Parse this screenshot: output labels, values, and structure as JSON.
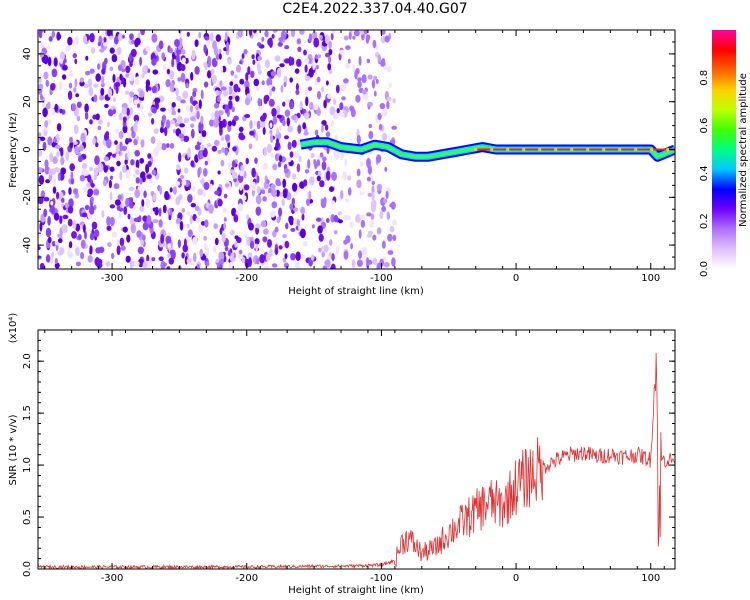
{
  "title": "C2E4.2022.337.04.40.G07",
  "colors": {
    "background": "#ffffff",
    "axis": "#000000",
    "noise": "#7a1cf0",
    "snr_line": "#e03030",
    "colorbar": [
      "#ffffff",
      "#e0c0ff",
      "#b070ff",
      "#7000ff",
      "#0000ff",
      "#00c8ff",
      "#00ff80",
      "#40ff00",
      "#c0ff00",
      "#ffd000",
      "#ff6000",
      "#ff0000",
      "#ff00a0"
    ]
  },
  "chart_data": [
    {
      "type": "heatmap",
      "xlabel": "Height of straight line (km)",
      "ylabel": "Frequency (Hz)",
      "xlim": [
        -355,
        118
      ],
      "ylim": [
        -50,
        50
      ],
      "xticks": [
        -300,
        -200,
        -100,
        0,
        100
      ],
      "yticks": [
        -40,
        -20,
        0,
        20,
        40
      ],
      "noise_region_x": [
        -355,
        -90
      ],
      "signal_track": {
        "x": [
          -160,
          -150,
          -140,
          -130,
          -115,
          -105,
          -95,
          -85,
          -75,
          -65,
          -55,
          -45,
          -35,
          -25,
          -15,
          0,
          20,
          40,
          60,
          80,
          100,
          105,
          118
        ],
        "y": [
          2,
          3,
          3,
          1,
          0,
          2,
          1,
          -2,
          -3,
          -3,
          -2,
          -1,
          0,
          1,
          0,
          0,
          0,
          0,
          0,
          0,
          0,
          -3,
          0
        ]
      },
      "colorbar": {
        "label": "Normalized spectral amplitude",
        "ticks": [
          "0.0",
          "0.2",
          "0.4",
          "0.6",
          "0.8"
        ],
        "range": [
          0,
          1
        ]
      }
    },
    {
      "type": "line",
      "xlabel": "Height of straight line (km)",
      "ylabel": "SNR (10 * v/v)",
      "multiplier_label": "(x10⁴)",
      "xlim": [
        -355,
        118
      ],
      "ylim": [
        0,
        2.3
      ],
      "xticks": [
        -300,
        -200,
        -100,
        0,
        100
      ],
      "yticks": [
        "0.0",
        "0.5",
        "1.0",
        "1.5",
        "2.0"
      ],
      "series": [
        {
          "x": [
            -355,
            -300,
            -200,
            -120,
            -100,
            -90,
            -85,
            -80,
            -70,
            -60,
            -50,
            -40,
            -30,
            -20,
            -10,
            0,
            10,
            20,
            30,
            40,
            50,
            60,
            70,
            80,
            90,
            100,
            104,
            106,
            108,
            118
          ],
          "y": [
            0.02,
            0.02,
            0.02,
            0.03,
            0.04,
            0.08,
            0.25,
            0.3,
            0.15,
            0.2,
            0.35,
            0.45,
            0.55,
            0.65,
            0.6,
            0.8,
            0.9,
            0.98,
            1.05,
            1.1,
            1.12,
            1.08,
            1.1,
            1.08,
            1.1,
            1.05,
            2.1,
            0.3,
            1.05,
            1.05
          ]
        }
      ]
    }
  ]
}
